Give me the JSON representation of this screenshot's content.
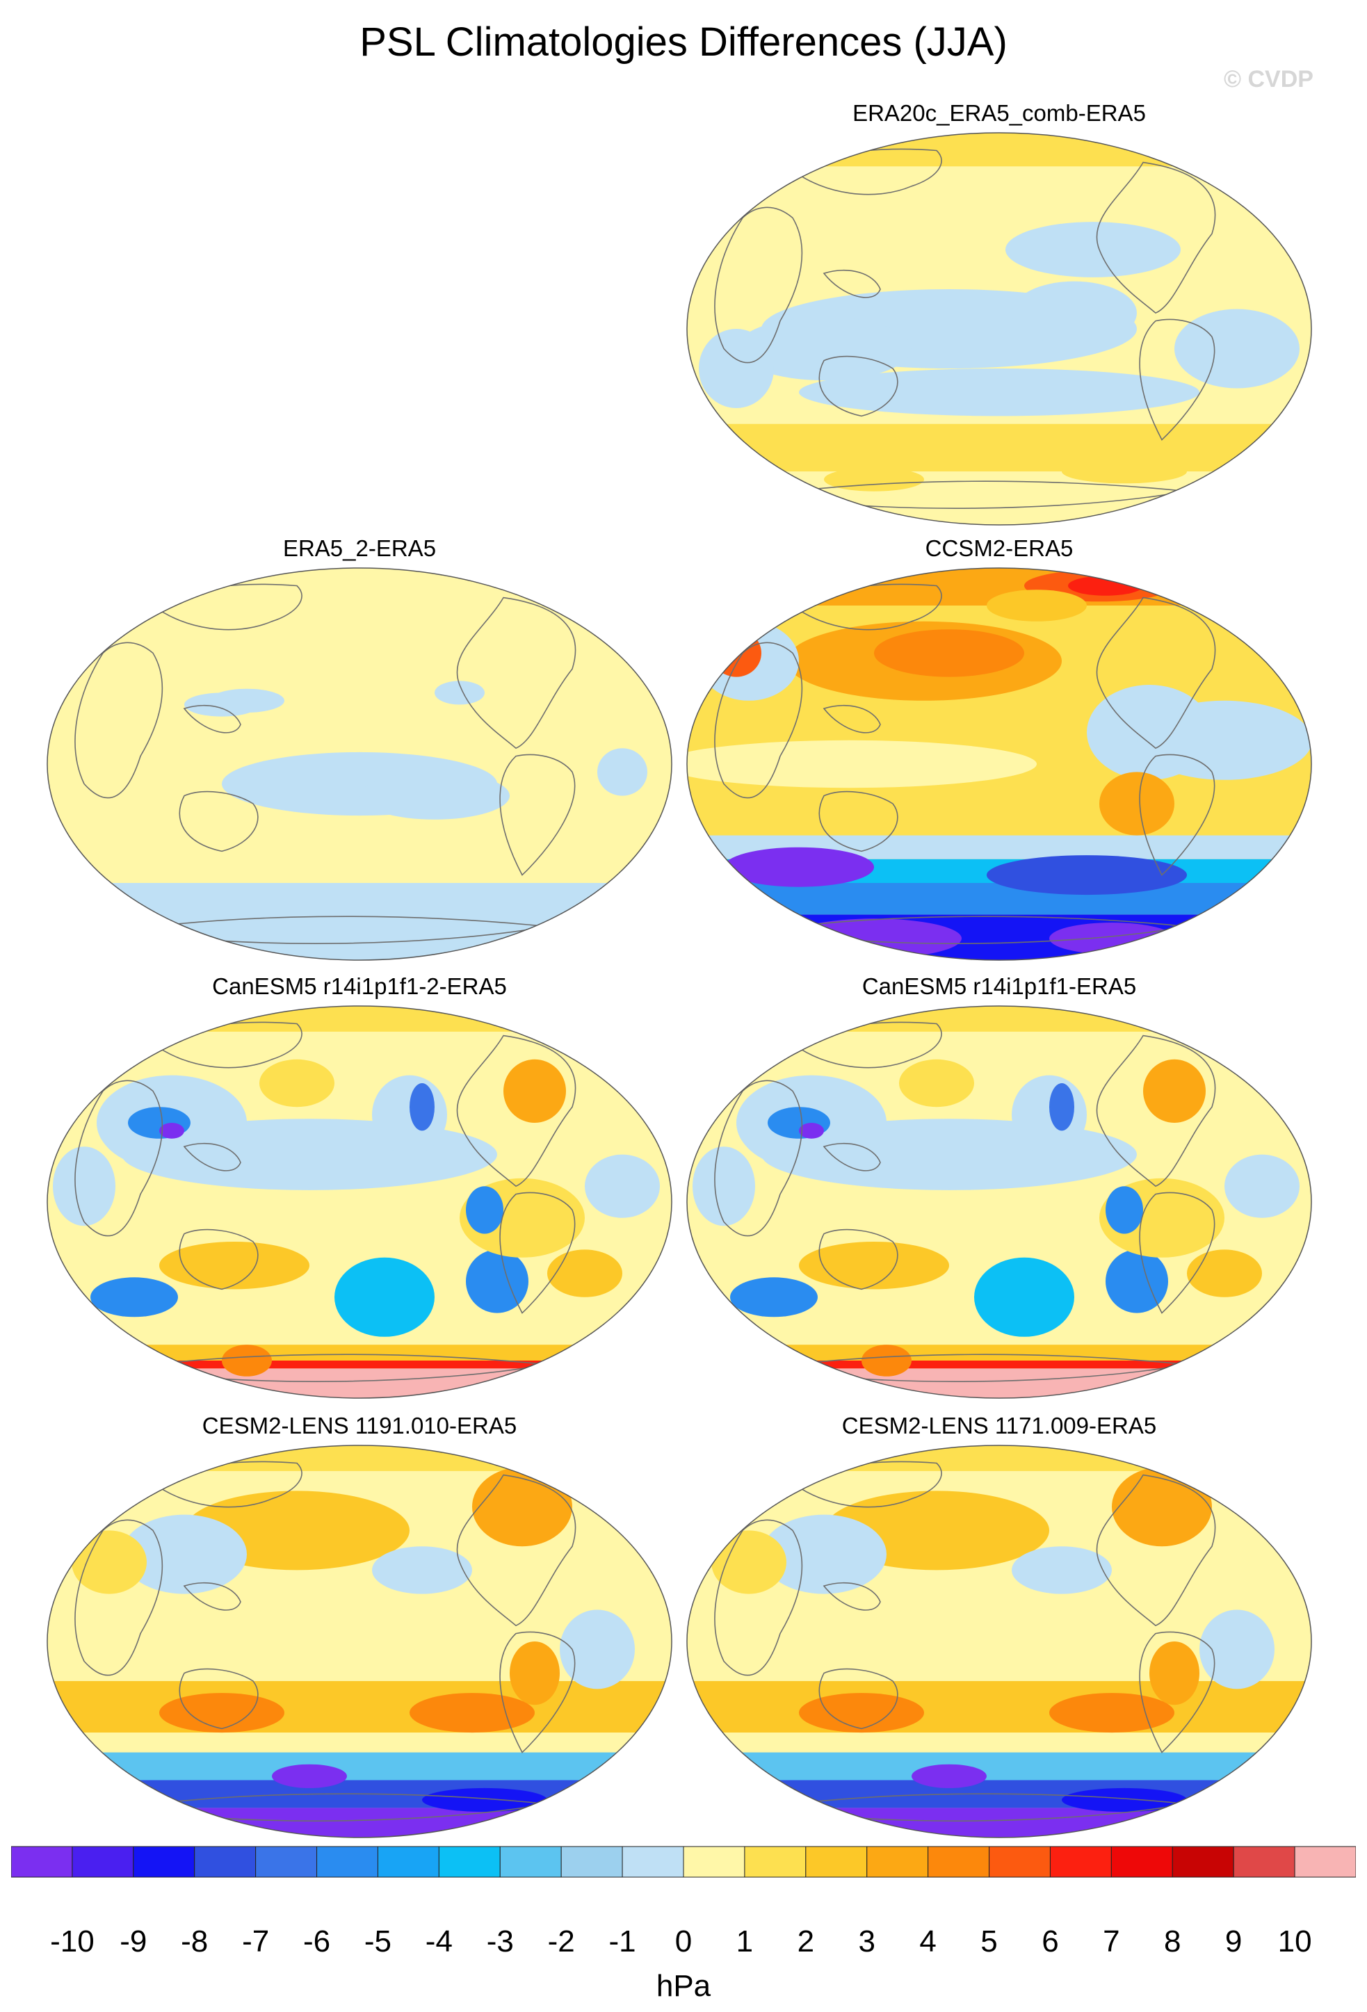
{
  "title": "PSL Climatologies Differences (JJA)",
  "watermark": "© CVDP",
  "panels": [
    {
      "id": "era20c",
      "title": "ERA20c_ERA5_comb-ERA5",
      "pattern": "weak-mixed"
    },
    {
      "id": "era5_2",
      "title": "ERA5_2-ERA5",
      "pattern": "near-zero"
    },
    {
      "id": "ccsm2",
      "title": "CCSM2-ERA5",
      "pattern": "strong-south-negative"
    },
    {
      "id": "canesm5_2",
      "title": "CanESM5 r14i1p1f1-2-ERA5",
      "pattern": "mixed-antarctic-positive"
    },
    {
      "id": "canesm5",
      "title": "CanESM5 r14i1p1f1-ERA5",
      "pattern": "mixed-antarctic-positive"
    },
    {
      "id": "cesm2_1191",
      "title": "CESM2-LENS 1191.010-ERA5",
      "pattern": "midlat-positive-polar-negative"
    },
    {
      "id": "cesm2_1171",
      "title": "CESM2-LENS 1171.009-ERA5",
      "pattern": "midlat-positive-polar-negative"
    }
  ],
  "colorbar": {
    "unit": "hPa",
    "labels": [
      "-10",
      "-9",
      "-8",
      "-7",
      "-6",
      "-5",
      "-4",
      "-3",
      "-2",
      "-1",
      "0",
      "1",
      "2",
      "3",
      "4",
      "5",
      "6",
      "7",
      "8",
      "9",
      "10"
    ],
    "colors": [
      "#7b2ff0",
      "#4a1ff0",
      "#1414f5",
      "#3050e0",
      "#3a74e8",
      "#2a8cf0",
      "#18a4f5",
      "#0cc0f5",
      "#5cc4f0",
      "#9cd0ee",
      "#bfe0f5",
      "#fff7a8",
      "#fde050",
      "#fcc828",
      "#fca814",
      "#fc880c",
      "#fc5a10",
      "#fc2010",
      "#ee0808",
      "#c80404",
      "#e04848",
      "#f8b4b4"
    ]
  }
}
